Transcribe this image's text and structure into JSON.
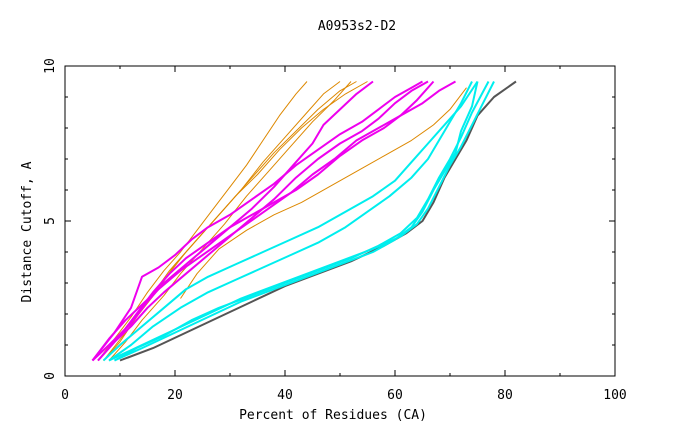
{
  "chart_data": {
    "type": "line",
    "title": "A0953s2-D2",
    "xlabel": "Percent of Residues (CA)",
    "ylabel": "Distance Cutoff, A",
    "xlim": [
      0,
      100
    ],
    "ylim": [
      0,
      10
    ],
    "x_tick_labels": [
      "0",
      "20",
      "40",
      "60",
      "80",
      "100"
    ],
    "y_tick_labels": [
      "0",
      "5",
      "10"
    ],
    "grid": false,
    "series": [
      {
        "name": "orange-1",
        "color": "#dd8800",
        "width": 1,
        "points": [
          [
            6,
            0.5
          ],
          [
            9,
            1.2
          ],
          [
            12,
            1.9
          ],
          [
            15,
            2.7
          ],
          [
            18,
            3.4
          ],
          [
            21,
            4.0
          ],
          [
            24,
            4.7
          ],
          [
            27,
            5.4
          ],
          [
            30,
            6.1
          ],
          [
            33,
            6.8
          ],
          [
            36,
            7.6
          ],
          [
            39,
            8.4
          ],
          [
            42,
            9.1
          ],
          [
            44,
            9.5
          ]
        ]
      },
      {
        "name": "orange-2",
        "color": "#dd8800",
        "width": 1,
        "points": [
          [
            7,
            0.5
          ],
          [
            10,
            1.1
          ],
          [
            13,
            1.9
          ],
          [
            17,
            2.8
          ],
          [
            20,
            3.6
          ],
          [
            24,
            4.4
          ],
          [
            28,
            5.2
          ],
          [
            32,
            6.0
          ],
          [
            36,
            6.9
          ],
          [
            40,
            7.7
          ],
          [
            44,
            8.5
          ],
          [
            47,
            9.1
          ],
          [
            50,
            9.5
          ]
        ]
      },
      {
        "name": "orange-3",
        "color": "#dd8800",
        "width": 1,
        "points": [
          [
            6,
            0.5
          ],
          [
            10,
            1.3
          ],
          [
            14,
            2.2
          ],
          [
            18,
            3.1
          ],
          [
            22,
            4.0
          ],
          [
            26,
            4.8
          ],
          [
            30,
            5.6
          ],
          [
            34,
            6.4
          ],
          [
            38,
            7.2
          ],
          [
            42,
            7.9
          ],
          [
            46,
            8.6
          ],
          [
            50,
            9.2
          ],
          [
            53,
            9.5
          ]
        ]
      },
      {
        "name": "orange-4",
        "color": "#dd8800",
        "width": 1,
        "points": [
          [
            8,
            0.5
          ],
          [
            11,
            1.1
          ],
          [
            14,
            1.8
          ],
          [
            18,
            2.6
          ],
          [
            21,
            3.3
          ],
          [
            25,
            4.1
          ],
          [
            29,
            4.9
          ],
          [
            33,
            5.8
          ],
          [
            37,
            6.6
          ],
          [
            41,
            7.4
          ],
          [
            45,
            8.2
          ],
          [
            49,
            8.9
          ],
          [
            52,
            9.5
          ]
        ]
      },
      {
        "name": "orange-5",
        "color": "#dd8800",
        "width": 1,
        "points": [
          [
            7,
            0.5
          ],
          [
            11,
            1.4
          ],
          [
            15,
            2.4
          ],
          [
            19,
            3.4
          ],
          [
            23,
            4.2
          ],
          [
            27,
            5.0
          ],
          [
            31,
            5.8
          ],
          [
            35,
            6.5
          ],
          [
            39,
            7.3
          ],
          [
            43,
            8.0
          ],
          [
            47,
            8.6
          ],
          [
            51,
            9.1
          ],
          [
            55,
            9.5
          ]
        ]
      },
      {
        "name": "orange-6",
        "color": "#dd8800",
        "width": 1,
        "points": [
          [
            21,
            2.5
          ],
          [
            24,
            3.3
          ],
          [
            28,
            4.1
          ],
          [
            33,
            4.7
          ],
          [
            38,
            5.2
          ],
          [
            43,
            5.6
          ],
          [
            48,
            6.1
          ],
          [
            53,
            6.6
          ],
          [
            58,
            7.1
          ],
          [
            63,
            7.6
          ],
          [
            67,
            8.1
          ],
          [
            70,
            8.6
          ],
          [
            73,
            9.3
          ]
        ]
      },
      {
        "name": "magenta-1",
        "color": "#ee00ee",
        "width": 2,
        "points": [
          [
            5,
            0.5
          ],
          [
            9,
            1.4
          ],
          [
            12,
            2.2
          ],
          [
            14,
            3.2
          ],
          [
            17,
            3.5
          ],
          [
            20,
            3.9
          ],
          [
            23,
            4.4
          ],
          [
            26,
            4.8
          ],
          [
            30,
            5.2
          ],
          [
            34,
            5.7
          ],
          [
            38,
            6.2
          ],
          [
            42,
            6.8
          ],
          [
            46,
            7.3
          ],
          [
            50,
            7.8
          ],
          [
            54,
            8.2
          ],
          [
            57,
            8.6
          ],
          [
            60,
            9.0
          ],
          [
            63,
            9.3
          ],
          [
            65,
            9.5
          ]
        ]
      },
      {
        "name": "magenta-2",
        "color": "#ee00ee",
        "width": 2,
        "points": [
          [
            5,
            0.5
          ],
          [
            8,
            1.2
          ],
          [
            11,
            1.8
          ],
          [
            14,
            2.3
          ],
          [
            17,
            2.8
          ],
          [
            21,
            3.4
          ],
          [
            25,
            3.9
          ],
          [
            29,
            4.4
          ],
          [
            33,
            4.9
          ],
          [
            37,
            5.4
          ],
          [
            41,
            5.9
          ],
          [
            45,
            6.5
          ],
          [
            49,
            7.0
          ],
          [
            53,
            7.6
          ],
          [
            57,
            8.0
          ],
          [
            61,
            8.4
          ],
          [
            65,
            8.8
          ],
          [
            68,
            9.2
          ],
          [
            71,
            9.5
          ]
        ]
      },
      {
        "name": "magenta-3",
        "color": "#ee00ee",
        "width": 2,
        "points": [
          [
            5,
            0.5
          ],
          [
            8,
            1.0
          ],
          [
            12,
            1.7
          ],
          [
            15,
            2.4
          ],
          [
            18,
            3.0
          ],
          [
            22,
            3.6
          ],
          [
            26,
            4.2
          ],
          [
            30,
            4.8
          ],
          [
            34,
            5.4
          ],
          [
            38,
            6.1
          ],
          [
            42,
            6.9
          ],
          [
            45,
            7.5
          ],
          [
            47,
            8.1
          ],
          [
            50,
            8.6
          ],
          [
            53,
            9.1
          ],
          [
            56,
            9.5
          ]
        ]
      },
      {
        "name": "magenta-4",
        "color": "#ee00ee",
        "width": 2,
        "points": [
          [
            6,
            0.5
          ],
          [
            9,
            1.1
          ],
          [
            12,
            1.6
          ],
          [
            15,
            2.2
          ],
          [
            18,
            2.7
          ],
          [
            22,
            3.3
          ],
          [
            26,
            3.9
          ],
          [
            30,
            4.5
          ],
          [
            34,
            5.1
          ],
          [
            38,
            5.7
          ],
          [
            42,
            6.4
          ],
          [
            46,
            7.0
          ],
          [
            50,
            7.5
          ],
          [
            54,
            7.9
          ],
          [
            57,
            8.3
          ],
          [
            60,
            8.8
          ],
          [
            63,
            9.2
          ],
          [
            66,
            9.5
          ]
        ]
      },
      {
        "name": "magenta-5",
        "color": "#ee00ee",
        "width": 2,
        "points": [
          [
            6,
            0.5
          ],
          [
            10,
            1.3
          ],
          [
            13,
            2.0
          ],
          [
            16,
            2.7
          ],
          [
            19,
            3.3
          ],
          [
            22,
            3.8
          ],
          [
            26,
            4.3
          ],
          [
            30,
            4.8
          ],
          [
            34,
            5.2
          ],
          [
            38,
            5.6
          ],
          [
            42,
            6.0
          ],
          [
            46,
            6.5
          ],
          [
            50,
            7.1
          ],
          [
            54,
            7.6
          ],
          [
            58,
            8.0
          ],
          [
            61,
            8.4
          ],
          [
            64,
            8.9
          ],
          [
            67,
            9.5
          ]
        ]
      },
      {
        "name": "gray-1",
        "color": "#555555",
        "width": 2,
        "points": [
          [
            10,
            0.5
          ],
          [
            16,
            0.9
          ],
          [
            22,
            1.4
          ],
          [
            28,
            1.9
          ],
          [
            34,
            2.4
          ],
          [
            40,
            2.9
          ],
          [
            46,
            3.3
          ],
          [
            52,
            3.7
          ],
          [
            58,
            4.2
          ],
          [
            62,
            4.6
          ],
          [
            65,
            5.0
          ],
          [
            67,
            5.6
          ],
          [
            69,
            6.4
          ],
          [
            71,
            7.0
          ],
          [
            73,
            7.6
          ],
          [
            75,
            8.4
          ],
          [
            78,
            9.0
          ],
          [
            82,
            9.5
          ]
        ]
      },
      {
        "name": "cyan-1",
        "color": "#00eeee",
        "width": 2,
        "points": [
          [
            8,
            0.5
          ],
          [
            14,
            1.0
          ],
          [
            20,
            1.5
          ],
          [
            26,
            2.0
          ],
          [
            32,
            2.5
          ],
          [
            38,
            2.9
          ],
          [
            44,
            3.3
          ],
          [
            50,
            3.7
          ],
          [
            56,
            4.1
          ],
          [
            61,
            4.5
          ],
          [
            64,
            4.9
          ],
          [
            66,
            5.4
          ],
          [
            68,
            6.1
          ],
          [
            70,
            6.8
          ],
          [
            72,
            7.4
          ],
          [
            74,
            8.1
          ],
          [
            76,
            8.8
          ],
          [
            78,
            9.5
          ]
        ]
      },
      {
        "name": "cyan-2",
        "color": "#00eeee",
        "width": 2,
        "points": [
          [
            9,
            0.5
          ],
          [
            14,
            0.9
          ],
          [
            20,
            1.4
          ],
          [
            26,
            1.9
          ],
          [
            32,
            2.4
          ],
          [
            38,
            2.8
          ],
          [
            44,
            3.2
          ],
          [
            50,
            3.6
          ],
          [
            56,
            4.0
          ],
          [
            60,
            4.4
          ],
          [
            63,
            4.8
          ],
          [
            65,
            5.3
          ],
          [
            67,
            6.0
          ],
          [
            69,
            6.6
          ],
          [
            71,
            7.2
          ],
          [
            72,
            7.9
          ],
          [
            74,
            8.7
          ],
          [
            75,
            9.5
          ]
        ]
      },
      {
        "name": "cyan-3",
        "color": "#00eeee",
        "width": 2,
        "points": [
          [
            8,
            0.5
          ],
          [
            12,
            1.0
          ],
          [
            16,
            1.6
          ],
          [
            21,
            2.2
          ],
          [
            26,
            2.7
          ],
          [
            31,
            3.1
          ],
          [
            36,
            3.5
          ],
          [
            41,
            3.9
          ],
          [
            46,
            4.3
          ],
          [
            51,
            4.8
          ],
          [
            55,
            5.3
          ],
          [
            59,
            5.8
          ],
          [
            63,
            6.4
          ],
          [
            66,
            7.0
          ],
          [
            68,
            7.6
          ],
          [
            70,
            8.2
          ],
          [
            72,
            8.8
          ],
          [
            74,
            9.5
          ]
        ]
      },
      {
        "name": "cyan-4",
        "color": "#00eeee",
        "width": 2,
        "points": [
          [
            7,
            0.5
          ],
          [
            10,
            1.0
          ],
          [
            14,
            1.6
          ],
          [
            18,
            2.2
          ],
          [
            22,
            2.8
          ],
          [
            26,
            3.2
          ],
          [
            31,
            3.6
          ],
          [
            36,
            4.0
          ],
          [
            41,
            4.4
          ],
          [
            46,
            4.8
          ],
          [
            51,
            5.3
          ],
          [
            56,
            5.8
          ],
          [
            60,
            6.3
          ],
          [
            63,
            6.9
          ],
          [
            66,
            7.5
          ],
          [
            69,
            8.1
          ],
          [
            72,
            8.7
          ],
          [
            75,
            9.5
          ]
        ]
      },
      {
        "name": "cyan-5",
        "color": "#00eeee",
        "width": 2,
        "points": [
          [
            9,
            0.5
          ],
          [
            13,
            0.9
          ],
          [
            18,
            1.3
          ],
          [
            23,
            1.8
          ],
          [
            28,
            2.2
          ],
          [
            34,
            2.6
          ],
          [
            40,
            3.0
          ],
          [
            46,
            3.4
          ],
          [
            52,
            3.8
          ],
          [
            57,
            4.2
          ],
          [
            61,
            4.6
          ],
          [
            64,
            5.1
          ],
          [
            66,
            5.7
          ],
          [
            68,
            6.4
          ],
          [
            70,
            7.0
          ],
          [
            72,
            7.7
          ],
          [
            74,
            8.5
          ],
          [
            77,
            9.5
          ]
        ]
      }
    ]
  }
}
